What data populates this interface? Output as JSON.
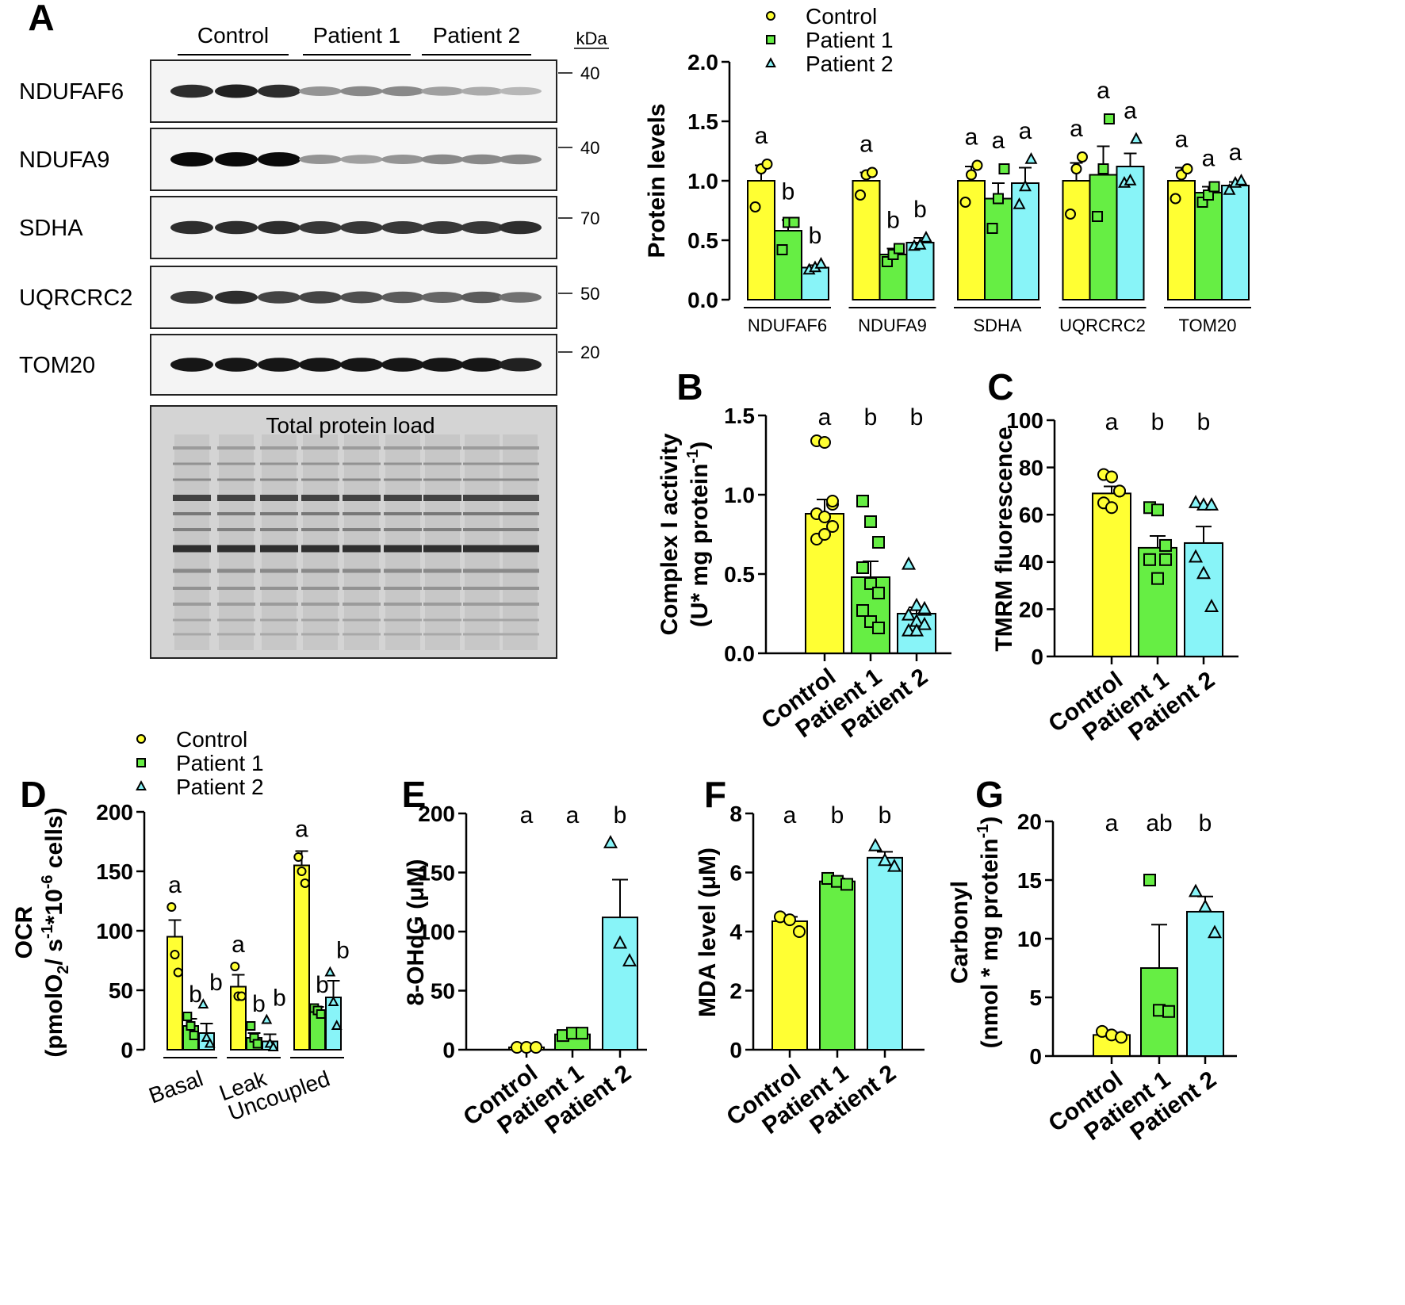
{
  "colors": {
    "control": "#ffff33",
    "patient1": "#66ee44",
    "patient2": "#88f4f8",
    "stroke": "#000000"
  },
  "blot": {
    "panel_letter": "A",
    "groups": [
      "Control",
      "Patient 1",
      "Patient 2"
    ],
    "kda_label": "kDa",
    "rows": [
      {
        "label": "NDUFAF6",
        "kda": "40",
        "intensity": [
          0.85,
          0.9,
          0.85,
          0.4,
          0.45,
          0.45,
          0.35,
          0.3,
          0.25
        ]
      },
      {
        "label": "NDUFA9",
        "kda": "40",
        "intensity": [
          1.0,
          1.0,
          1.0,
          0.4,
          0.35,
          0.4,
          0.45,
          0.45,
          0.45
        ]
      },
      {
        "label": "SDHA",
        "kda": "70",
        "intensity": [
          0.85,
          0.85,
          0.85,
          0.8,
          0.8,
          0.8,
          0.8,
          0.8,
          0.85
        ]
      },
      {
        "label": "UQRCRC2",
        "kda": "50",
        "intensity": [
          0.8,
          0.85,
          0.75,
          0.75,
          0.7,
          0.65,
          0.6,
          0.65,
          0.55
        ]
      },
      {
        "label": "TOM20",
        "kda": "20",
        "intensity": [
          0.95,
          0.95,
          0.95,
          0.95,
          0.95,
          0.95,
          0.95,
          0.95,
          0.9
        ]
      }
    ],
    "total_label": "Total protein load"
  },
  "chart_data": [
    {
      "panel": "A",
      "type": "bar",
      "ylabel": "Protein levels",
      "ylim": [
        0,
        2.0
      ],
      "yticks": [
        "0.0",
        "0.5",
        "1.0",
        "1.5",
        "2.0"
      ],
      "categories": [
        "NDUFAF6",
        "NDUFA9",
        "SDHA",
        "UQRCRC2",
        "TOM20"
      ],
      "legend": [
        "Control",
        "Patient 1",
        "Patient 2"
      ],
      "series": [
        {
          "name": "Control",
          "values": [
            1.0,
            1.0,
            1.0,
            1.0,
            1.0
          ],
          "errors": [
            0.13,
            0.07,
            0.12,
            0.15,
            0.11
          ],
          "points": [
            [
              0.78,
              1.1,
              1.14
            ],
            [
              0.88,
              1.05,
              1.07
            ],
            [
              0.82,
              1.05,
              1.13
            ],
            [
              0.72,
              1.1,
              1.2
            ],
            [
              0.85,
              1.05,
              1.1
            ]
          ]
        },
        {
          "name": "Patient 1",
          "values": [
            0.58,
            0.38,
            0.85,
            1.05,
            0.9
          ],
          "errors": [
            0.09,
            0.05,
            0.13,
            0.24,
            0.05
          ],
          "points": [
            [
              0.42,
              0.65,
              0.65
            ],
            [
              0.32,
              0.38,
              0.43
            ],
            [
              0.6,
              0.85,
              1.1
            ],
            [
              0.7,
              1.1,
              1.52
            ],
            [
              0.82,
              0.88,
              0.95
            ]
          ]
        },
        {
          "name": "Patient 2",
          "values": [
            0.27,
            0.48,
            0.98,
            1.12,
            0.96
          ],
          "errors": [
            0.02,
            0.04,
            0.13,
            0.11,
            0.03
          ],
          "points": [
            [
              0.25,
              0.27,
              0.3
            ],
            [
              0.45,
              0.46,
              0.52
            ],
            [
              0.8,
              0.95,
              1.18
            ],
            [
              0.98,
              1.0,
              1.35
            ],
            [
              0.92,
              0.98,
              1.0
            ]
          ]
        }
      ],
      "annotations": [
        [
          "a",
          "b",
          "b"
        ],
        [
          "a",
          "b",
          "b"
        ],
        [
          "a",
          "a",
          "a"
        ],
        [
          "a",
          "a",
          "a"
        ],
        [
          "a",
          "a",
          "a"
        ]
      ]
    },
    {
      "panel": "B",
      "type": "bar",
      "ylabel": "Complex I activity",
      "ylabel2": "(U* mg protein",
      "ylabel2_sup": "-1",
      "ylabel2_end": ")",
      "ylim": [
        0,
        1.5
      ],
      "yticks": [
        "0.0",
        "0.5",
        "1.0",
        "1.5"
      ],
      "categories": [
        "Control",
        "Patient 1",
        "Patient 2"
      ],
      "values": [
        0.88,
        0.48,
        0.25
      ],
      "errors": [
        0.09,
        0.1,
        0.04
      ],
      "points": [
        [
          1.34,
          1.33,
          0.94,
          0.88,
          0.86,
          0.8,
          0.72,
          0.75,
          0.96
        ],
        [
          0.96,
          0.83,
          0.7,
          0.54,
          0.44,
          0.38,
          0.27,
          0.2,
          0.16
        ],
        [
          0.56,
          0.3,
          0.27,
          0.24,
          0.2,
          0.18,
          0.14,
          0.14,
          0.28
        ]
      ],
      "annotations": [
        "a",
        "b",
        "b"
      ]
    },
    {
      "panel": "C",
      "type": "bar",
      "ylabel": "TMRM fluorescence",
      "ylim": [
        0,
        100
      ],
      "yticks": [
        "0",
        "20",
        "40",
        "60",
        "80",
        "100"
      ],
      "categories": [
        "Control",
        "Patient 1",
        "Patient 2"
      ],
      "values": [
        69,
        46,
        48
      ],
      "errors": [
        3,
        5,
        7
      ],
      "points": [
        [
          77,
          76,
          70,
          65,
          63,
          70
        ],
        [
          63,
          62,
          47,
          41,
          33,
          41
        ],
        [
          65,
          64,
          64,
          42,
          35,
          21
        ]
      ],
      "annotations": [
        "a",
        "b",
        "b"
      ]
    },
    {
      "panel": "D",
      "type": "bar",
      "ylabel": "OCR",
      "ylabel2": "(pmolO",
      "ylabel2_sub": "2",
      "ylabel2_mid": "/ s",
      "ylabel2_sup": "-1",
      "ylabel2_mid2": "*10",
      "ylabel2_sup2": "-6",
      "ylabel2_end": " cells)",
      "ylim": [
        0,
        200
      ],
      "yticks": [
        "0",
        "50",
        "100",
        "150",
        "200"
      ],
      "categories": [
        "Basal",
        "Leak",
        "Uncoupled"
      ],
      "legend": [
        "Control",
        "Patient 1",
        "Patient 2"
      ],
      "series": [
        {
          "name": "Control",
          "values": [
            95,
            53,
            155
          ],
          "errors": [
            14,
            10,
            12
          ],
          "points": [
            [
              120,
              80,
              65
            ],
            [
              70,
              45,
              45
            ],
            [
              162,
              150,
              140
            ]
          ]
        },
        {
          "name": "Patient 1",
          "values": [
            20,
            10,
            33
          ],
          "errors": [
            6,
            4,
            3
          ],
          "points": [
            [
              28,
              20,
              12
            ],
            [
              20,
              10,
              5
            ],
            [
              35,
              33,
              30
            ]
          ]
        },
        {
          "name": "Patient 2",
          "values": [
            14,
            7,
            44
          ],
          "errors": [
            8,
            6,
            14
          ],
          "points": [
            [
              38,
              10,
              5
            ],
            [
              25,
              5,
              2
            ],
            [
              65,
              40,
              20
            ]
          ]
        }
      ],
      "annotations": [
        [
          "a",
          "b",
          "b"
        ],
        [
          "a",
          "b",
          "b"
        ],
        [
          "a",
          "b",
          "b"
        ]
      ]
    },
    {
      "panel": "E",
      "type": "bar",
      "ylabel": "8-OHdG (μM)",
      "ylim": [
        0,
        200
      ],
      "yticks": [
        "0",
        "50",
        "100",
        "150",
        "200"
      ],
      "categories": [
        "Control",
        "Patient 1",
        "Patient 2"
      ],
      "values": [
        2,
        13,
        112
      ],
      "errors": [
        0.5,
        2,
        32
      ],
      "points": [
        [
          2,
          2,
          2
        ],
        [
          12,
          14,
          14
        ],
        [
          175,
          90,
          75
        ]
      ],
      "annotations": [
        "a",
        "a",
        "b"
      ]
    },
    {
      "panel": "F",
      "type": "bar",
      "ylabel": "MDA level (μM)",
      "ylim": [
        0,
        8
      ],
      "yticks": [
        "0",
        "2",
        "4",
        "6",
        "8"
      ],
      "categories": [
        "Control",
        "Patient 1",
        "Patient 2"
      ],
      "values": [
        4.35,
        5.7,
        6.5
      ],
      "errors": [
        0.15,
        0.1,
        0.2
      ],
      "points": [
        [
          4.5,
          4.4,
          4.0
        ],
        [
          5.8,
          5.7,
          5.6
        ],
        [
          6.9,
          6.4,
          6.2
        ]
      ],
      "annotations": [
        "a",
        "b",
        "b"
      ]
    },
    {
      "panel": "G",
      "type": "bar",
      "ylabel": "Carbonyl",
      "ylabel2": "(nmol * mg protein",
      "ylabel2_sup": "-1",
      "ylabel2_end": ")",
      "ylim": [
        0,
        20
      ],
      "yticks": [
        "0",
        "5",
        "10",
        "15",
        "20"
      ],
      "categories": [
        "Control",
        "Patient 1",
        "Patient 2"
      ],
      "values": [
        1.8,
        7.5,
        12.3
      ],
      "errors": [
        0.2,
        3.7,
        1.3
      ],
      "points": [
        [
          2.1,
          1.8,
          1.6
        ],
        [
          15.0,
          3.9,
          3.8
        ],
        [
          14.0,
          12.7,
          10.5
        ]
      ],
      "annotations": [
        "a",
        "ab",
        "b"
      ]
    }
  ]
}
